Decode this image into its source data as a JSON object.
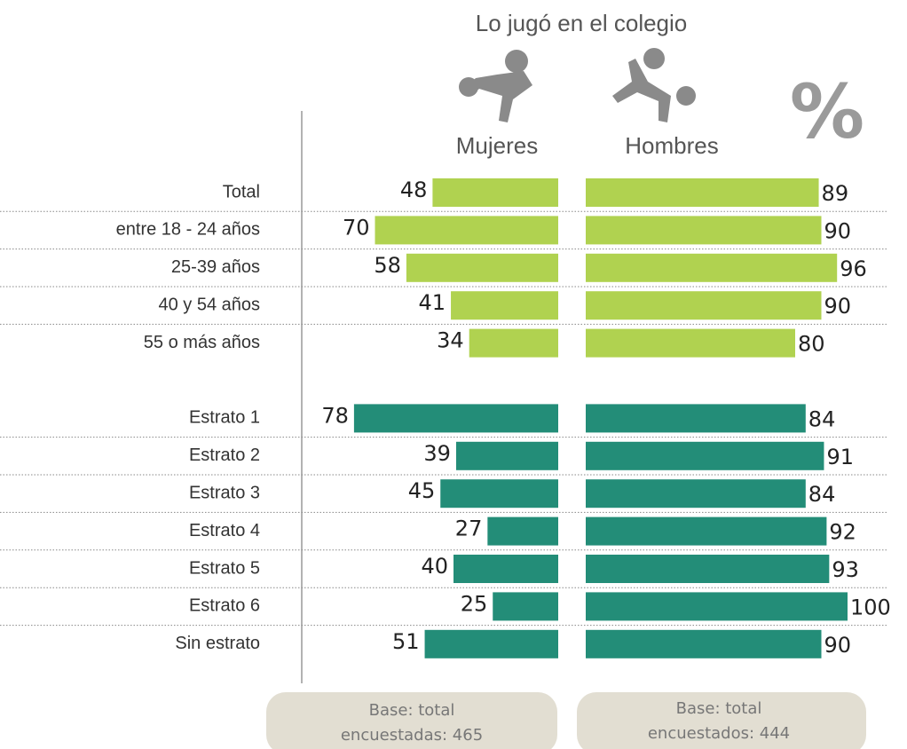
{
  "chart_data": {
    "type": "butterfly",
    "title": "Lo jugó en el colegio",
    "unit_mark": "%",
    "categories": [
      "Total",
      "entre 18 - 24 años",
      "25-39 años",
      "40 y 54 años",
      "55 o más años",
      null,
      "Estrato 1",
      "Estrato 2",
      "Estrato 3",
      "Estrato 4",
      "Estrato 5",
      "Estrato 6",
      "Sin estrato"
    ],
    "bar_colors": [
      "#b0d250",
      "#b0d250",
      "#b0d250",
      "#b0d250",
      "#b0d250",
      null,
      "#238d78",
      "#238d78",
      "#238d78",
      "#238d78",
      "#238d78",
      "#238d78",
      "#238d78"
    ],
    "series": [
      {
        "name": "Mujeres",
        "values": [
          48,
          70,
          58,
          41,
          34,
          null,
          78,
          39,
          45,
          27,
          40,
          25,
          51
        ]
      },
      {
        "name": "Hombres",
        "values": [
          89,
          90,
          96,
          90,
          80,
          null,
          84,
          91,
          84,
          92,
          93,
          100,
          90
        ]
      }
    ],
    "xlim": [
      0,
      100
    ],
    "notes": [
      [
        "Base: total",
        "encuestadas: 465"
      ],
      [
        "Base: total",
        "encuestados: 444"
      ]
    ]
  }
}
